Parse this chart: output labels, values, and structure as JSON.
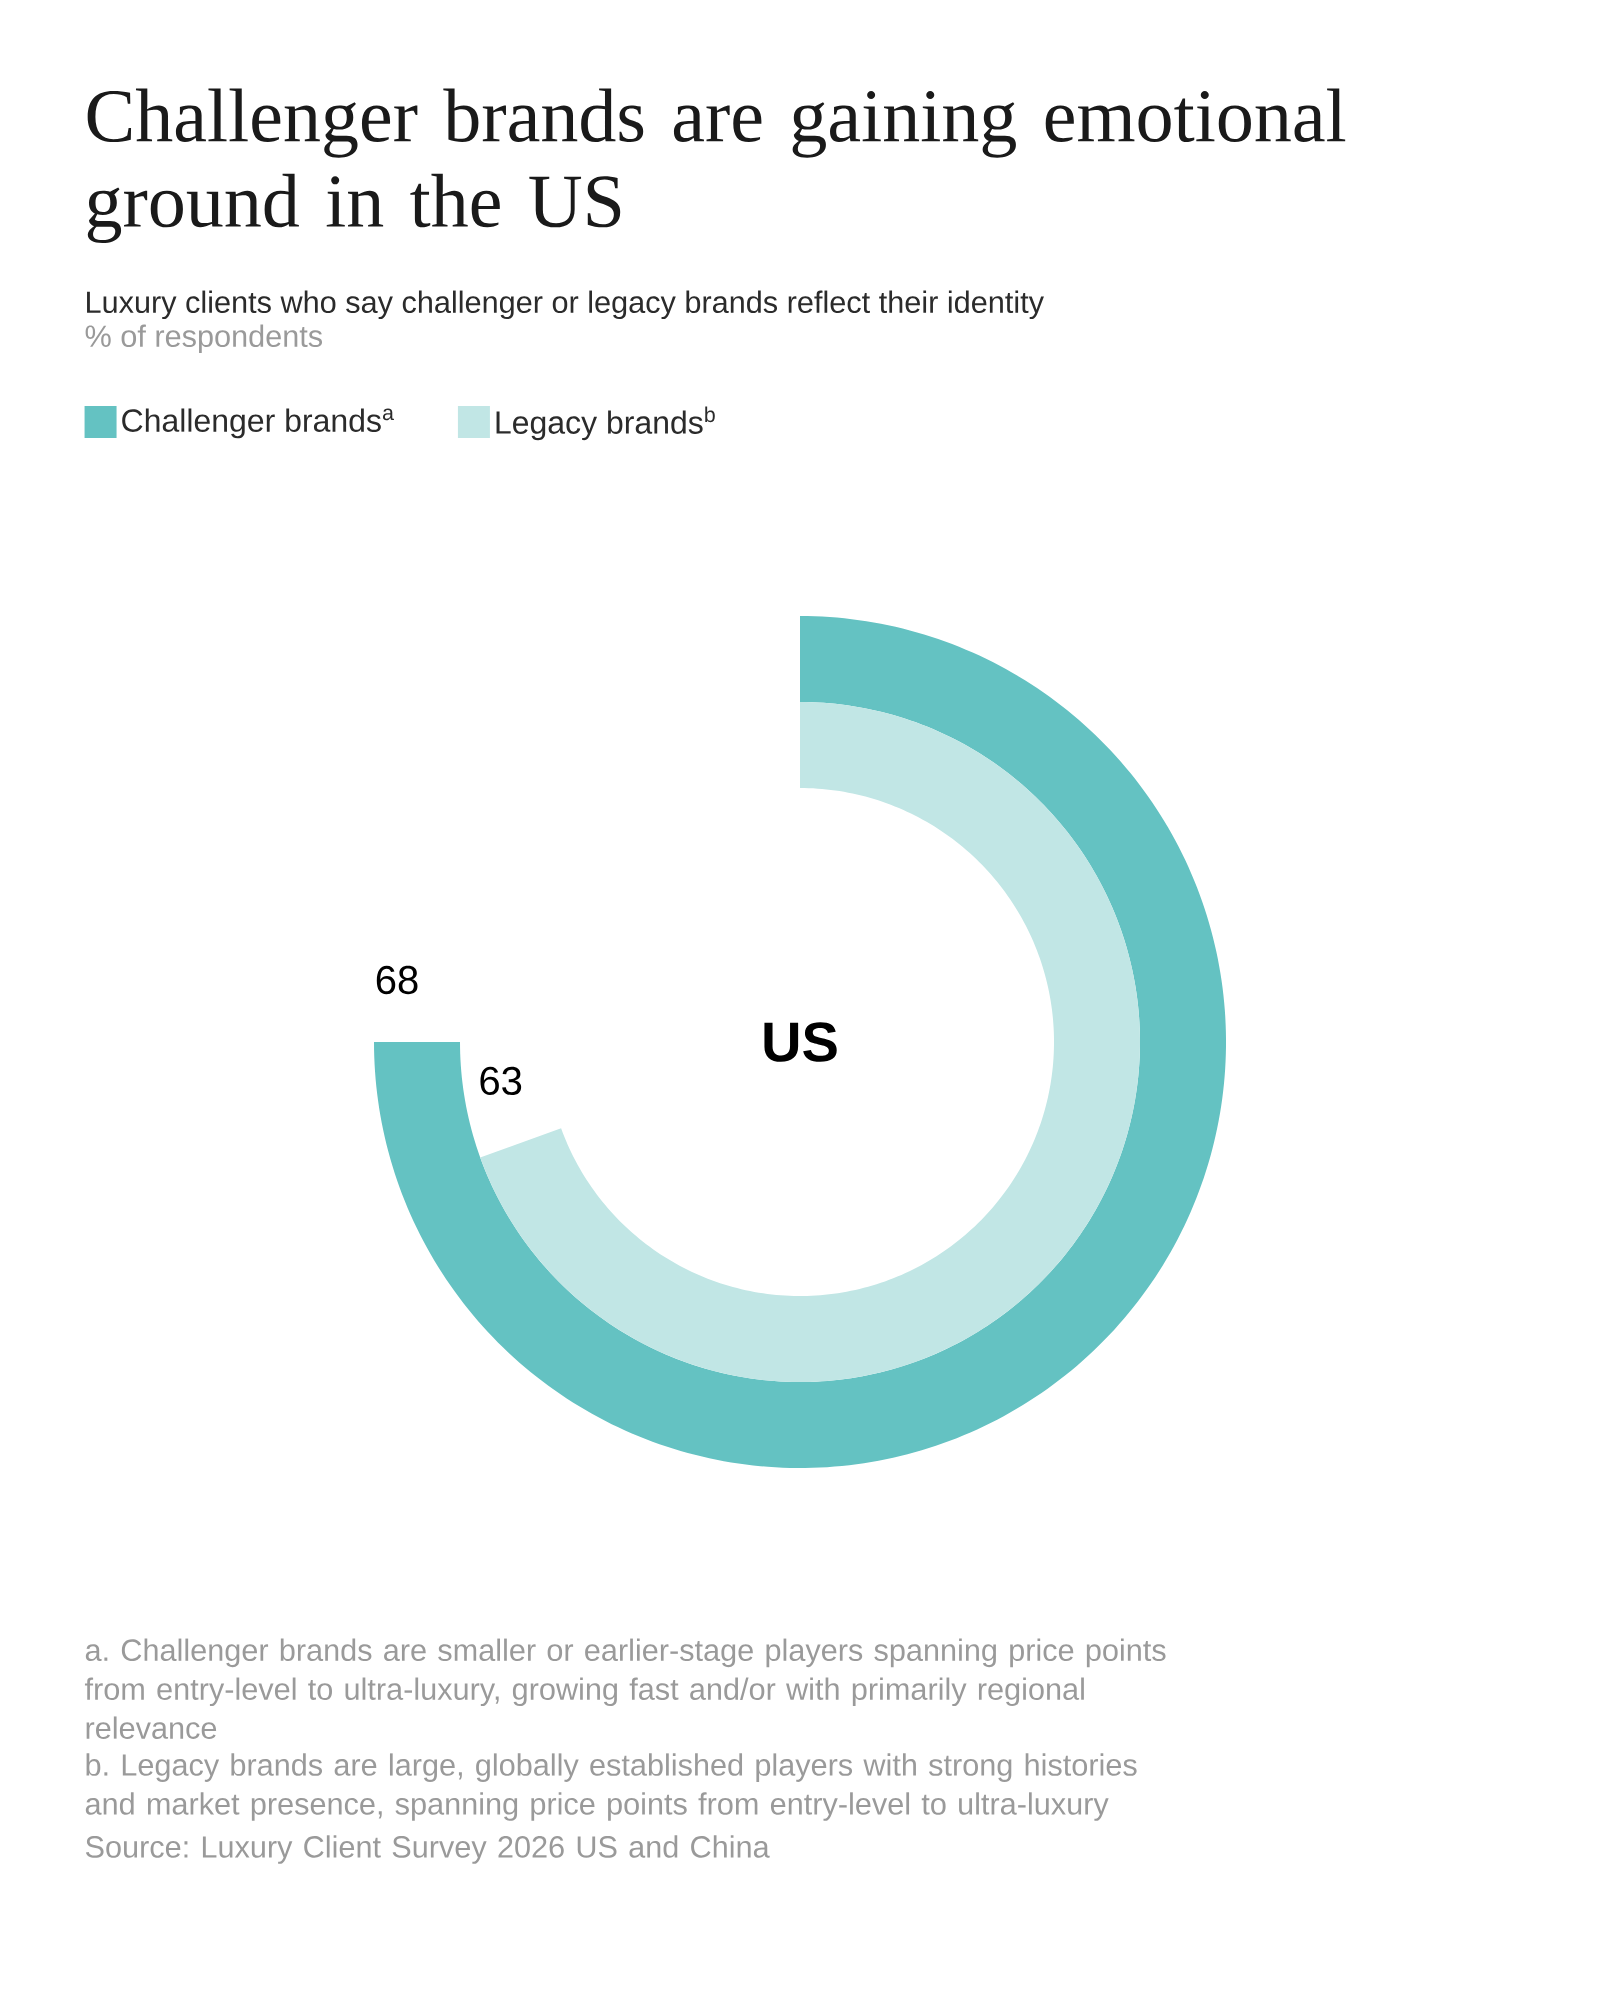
{
  "chart_data": {
    "type": "other",
    "title": "Challenger brands are gaining emotional ground in the US",
    "subtitle": "Luxury clients who say challenger or legacy brands reflect their identity",
    "ylabel": "% of respondents",
    "categories": [
      "US"
    ],
    "series": [
      {
        "name": "Challenger brands$^{a}$",
        "color": "#64c2c2",
        "values": [
          68
        ]
      },
      {
        "name": "Legacy brands$^{b}$",
        "color": "#c1e6e5",
        "values": [
          63
        ]
      }
    ],
    "data_labels": true,
    "legend": "top left",
    "annotations": [
      "a. Challenger brands are smaller or earlier-stage players spanning price points from entry-level to ultra-luxury, growing fast and/or with primarily regional relevance",
      "b. Legacy brands are large, globally established players with strong histories and market presence, spanning price points from entry-level to ultra-luxury",
      "Source: Luxury Client Survey 2026 US and China"
    ]
  }
}
